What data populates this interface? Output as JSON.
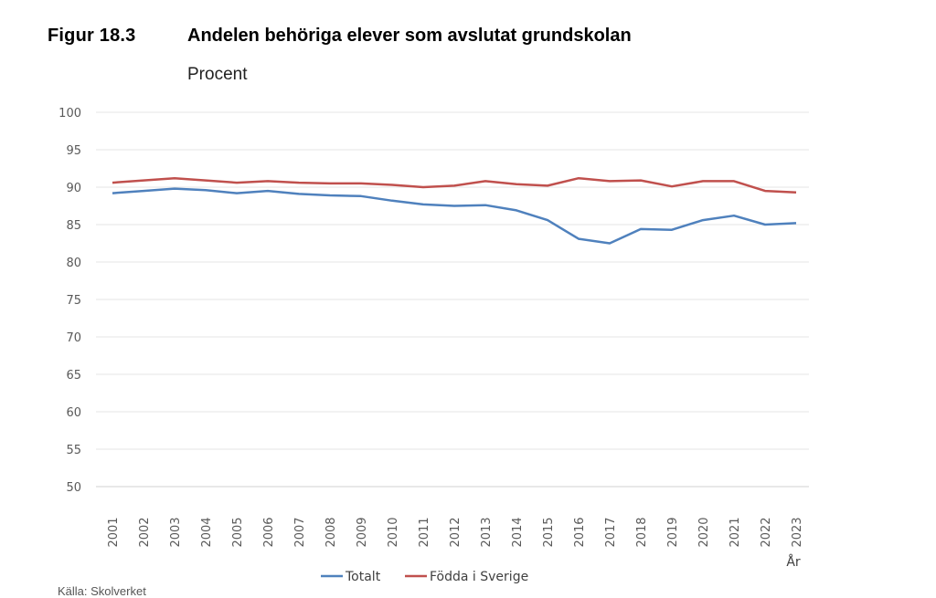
{
  "figure": {
    "label": "Figur 18.3",
    "title": "Andelen behöriga elever som avslutat grundskolan",
    "subtitle": "Procent",
    "source_fragment": "Källa: Skolverket"
  },
  "chart_data": {
    "type": "line",
    "title": "Andelen behöriga elever som avslutat grundskolan",
    "ylabel": "Procent",
    "xlabel": "År",
    "categories": [
      "2001",
      "2002",
      "2003",
      "2004",
      "2005",
      "2006",
      "2007",
      "2008",
      "2009",
      "2010",
      "2011",
      "2012",
      "2013",
      "2014",
      "2015",
      "2016",
      "2017",
      "2018",
      "2019",
      "2020",
      "2021",
      "2022",
      "2023"
    ],
    "ylim": [
      50,
      100
    ],
    "yticks": [
      100,
      95,
      90,
      85,
      80,
      75,
      70,
      65,
      60,
      55,
      50
    ],
    "grid": true,
    "legend_position": "bottom",
    "series": [
      {
        "name": "Totalt",
        "color": "#4f81bd",
        "values": [
          89.2,
          89.5,
          89.8,
          89.6,
          89.2,
          89.5,
          89.1,
          88.9,
          88.8,
          88.2,
          87.7,
          87.5,
          87.6,
          86.9,
          85.6,
          83.1,
          82.5,
          84.4,
          84.3,
          85.6,
          86.2,
          85.0,
          85.2
        ]
      },
      {
        "name": "Födda i Sverige",
        "color": "#c0504d",
        "values": [
          90.6,
          90.9,
          91.2,
          90.9,
          90.6,
          90.8,
          90.6,
          90.5,
          90.5,
          90.3,
          90.0,
          90.2,
          90.8,
          90.4,
          90.2,
          91.2,
          90.8,
          90.9,
          90.1,
          90.8,
          90.8,
          89.5,
          89.3
        ]
      }
    ]
  }
}
